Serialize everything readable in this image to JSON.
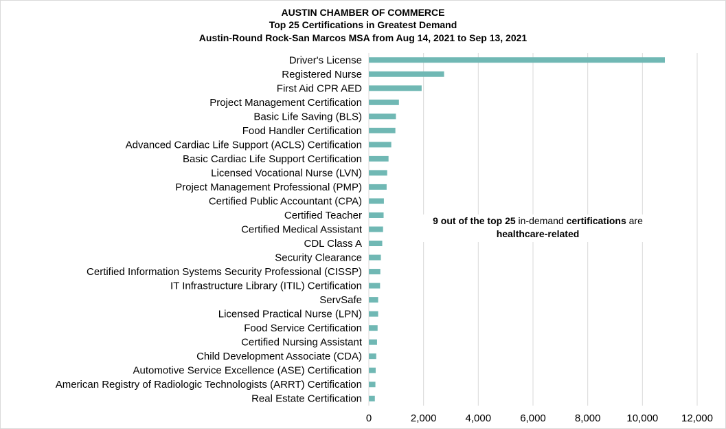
{
  "chart_data": {
    "type": "bar",
    "orientation": "horizontal",
    "title": "AUSTIN CHAMBER OF COMMERCE",
    "subtitle": "Top 25 Certifications in Greatest Demand",
    "subtitle2": "Austin-Round Rock-San Marcos MSA from Aug 14, 2021 to Sep 13, 2021",
    "categories": [
      "Driver's License",
      "Registered Nurse",
      "First Aid CPR AED",
      "Project Management Certification",
      "Basic Life Saving (BLS)",
      "Food Handler Certification",
      "Advanced Cardiac Life Support (ACLS) Certification",
      "Basic Cardiac Life Support Certification",
      "Licensed Vocational Nurse (LVN)",
      "Project Management Professional (PMP)",
      "Certified Public Accountant (CPA)",
      "Certified Teacher",
      "Certified Medical Assistant",
      "CDL Class A",
      "Security Clearance",
      "Certified Information Systems Security Professional (CISSP)",
      "IT Infrastructure Library (ITIL) Certification",
      "ServSafe",
      "Licensed Practical Nurse (LPN)",
      "Food Service Certification",
      "Certified Nursing Assistant",
      "Child Development Associate (CDA)",
      "Automotive Service Excellence (ASE) Certification",
      "American Registry of Radiologic Technologists (ARRT) Certification",
      "Real Estate Certification"
    ],
    "values": [
      10820,
      2750,
      1930,
      1100,
      990,
      970,
      820,
      720,
      670,
      650,
      550,
      540,
      520,
      490,
      440,
      420,
      410,
      340,
      340,
      320,
      300,
      270,
      250,
      240,
      220
    ],
    "xlim": [
      0,
      12000
    ],
    "xticks": [
      "0",
      "2,000",
      "4,000",
      "6,000",
      "8,000",
      "10,000",
      "12,000"
    ],
    "xtick_values": [
      0,
      2000,
      4000,
      6000,
      8000,
      10000,
      12000
    ],
    "xlabel": "",
    "ylabel": "",
    "grid": "vertical",
    "legend": "none",
    "bar_color": "#70b8b4",
    "grid_color": "#d9d9d9"
  },
  "annotation": {
    "part1": "9 out of the top 25",
    "part2": " in-demand ",
    "part3": "certifications",
    "part4": " are",
    "part5": "healthcare-related"
  }
}
